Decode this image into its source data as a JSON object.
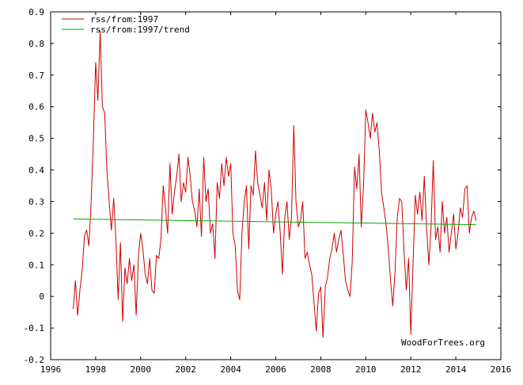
{
  "chart_data": {
    "type": "line",
    "title": "",
    "xlabel": "",
    "ylabel": "",
    "xlim": [
      1996,
      2016
    ],
    "ylim": [
      -0.2,
      0.9
    ],
    "x_ticks": [
      1996,
      1998,
      2000,
      2002,
      2004,
      2006,
      2008,
      2010,
      2012,
      2014,
      2016
    ],
    "y_ticks": [
      -0.2,
      -0.1,
      0,
      0.1,
      0.2,
      0.3,
      0.4,
      0.5,
      0.6,
      0.7,
      0.8,
      0.9
    ],
    "y_tick_labels": [
      "-0.2",
      "-0.1",
      "0",
      "0.1",
      "0.2",
      "0.3",
      "0.4",
      "0.5",
      "0.6",
      "0.7",
      "0.8",
      "0.9"
    ],
    "grid": false,
    "legend_position": "top-left",
    "watermark": "WoodForTrees.org",
    "series": [
      {
        "name": "rss/from:1997",
        "color": "#cc0000",
        "x": [
          1997.0,
          1997.1,
          1997.2,
          1997.3,
          1997.4,
          1997.5,
          1997.6,
          1997.7,
          1997.8,
          1997.9,
          1998.0,
          1998.1,
          1998.2,
          1998.3,
          1998.4,
          1998.5,
          1998.6,
          1998.7,
          1998.8,
          1998.9,
          1999.0,
          1999.1,
          1999.2,
          1999.3,
          1999.4,
          1999.5,
          1999.6,
          1999.7,
          1999.8,
          1999.9,
          2000.0,
          2000.1,
          2000.2,
          2000.3,
          2000.4,
          2000.5,
          2000.6,
          2000.7,
          2000.8,
          2000.9,
          2001.0,
          2001.1,
          2001.2,
          2001.3,
          2001.4,
          2001.5,
          2001.6,
          2001.7,
          2001.8,
          2001.9,
          2002.0,
          2002.1,
          2002.2,
          2002.3,
          2002.4,
          2002.5,
          2002.6,
          2002.7,
          2002.8,
          2002.9,
          2003.0,
          2003.1,
          2003.2,
          2003.3,
          2003.4,
          2003.5,
          2003.6,
          2003.7,
          2003.8,
          2003.9,
          2004.0,
          2004.1,
          2004.2,
          2004.3,
          2004.4,
          2004.5,
          2004.6,
          2004.7,
          2004.8,
          2004.9,
          2005.0,
          2005.1,
          2005.2,
          2005.3,
          2005.4,
          2005.5,
          2005.6,
          2005.7,
          2005.8,
          2005.9,
          2006.0,
          2006.1,
          2006.2,
          2006.3,
          2006.4,
          2006.5,
          2006.6,
          2006.7,
          2006.8,
          2006.9,
          2007.0,
          2007.1,
          2007.2,
          2007.3,
          2007.4,
          2007.5,
          2007.6,
          2007.7,
          2007.8,
          2007.9,
          2008.0,
          2008.1,
          2008.2,
          2008.3,
          2008.4,
          2008.5,
          2008.6,
          2008.7,
          2008.8,
          2008.9,
          2009.0,
          2009.1,
          2009.2,
          2009.3,
          2009.4,
          2009.5,
          2009.6,
          2009.7,
          2009.8,
          2009.9,
          2010.0,
          2010.1,
          2010.2,
          2010.3,
          2010.4,
          2010.5,
          2010.6,
          2010.7,
          2010.8,
          2010.9,
          2011.0,
          2011.1,
          2011.2,
          2011.3,
          2011.4,
          2011.5,
          2011.6,
          2011.7,
          2011.8,
          2011.9,
          2012.0,
          2012.1,
          2012.2,
          2012.3,
          2012.4,
          2012.5,
          2012.6,
          2012.7,
          2012.8,
          2012.9,
          2013.0,
          2013.1,
          2013.2,
          2013.3,
          2013.4,
          2013.5,
          2013.6,
          2013.7,
          2013.8,
          2013.9,
          2014.0,
          2014.1,
          2014.2,
          2014.3,
          2014.4,
          2014.5,
          2014.6,
          2014.7,
          2014.8,
          2014.9
        ],
        "y": [
          -0.04,
          0.05,
          -0.06,
          0.02,
          0.08,
          0.19,
          0.21,
          0.16,
          0.3,
          0.5,
          0.74,
          0.62,
          0.84,
          0.6,
          0.58,
          0.4,
          0.3,
          0.21,
          0.31,
          0.18,
          -0.01,
          0.17,
          -0.08,
          0.09,
          0.04,
          0.12,
          0.05,
          0.1,
          -0.06,
          0.13,
          0.2,
          0.15,
          0.07,
          0.04,
          0.12,
          0.02,
          0.01,
          0.13,
          0.12,
          0.18,
          0.35,
          0.28,
          0.2,
          0.42,
          0.26,
          0.33,
          0.38,
          0.45,
          0.3,
          0.36,
          0.33,
          0.44,
          0.38,
          0.3,
          0.27,
          0.22,
          0.34,
          0.19,
          0.44,
          0.3,
          0.34,
          0.2,
          0.23,
          0.12,
          0.36,
          0.31,
          0.42,
          0.35,
          0.44,
          0.38,
          0.42,
          0.2,
          0.16,
          0.02,
          -0.01,
          0.2,
          0.3,
          0.35,
          0.15,
          0.35,
          0.32,
          0.46,
          0.36,
          0.32,
          0.28,
          0.36,
          0.24,
          0.4,
          0.34,
          0.2,
          0.26,
          0.3,
          0.2,
          0.07,
          0.25,
          0.3,
          0.18,
          0.25,
          0.54,
          0.3,
          0.22,
          0.24,
          0.3,
          0.12,
          0.14,
          0.1,
          0.07,
          -0.02,
          -0.11,
          0.01,
          0.03,
          -0.13,
          0.03,
          0.06,
          0.12,
          0.15,
          0.2,
          0.14,
          0.18,
          0.21,
          0.13,
          0.05,
          0.02,
          0.0,
          0.11,
          0.41,
          0.34,
          0.45,
          0.22,
          0.35,
          0.59,
          0.55,
          0.5,
          0.58,
          0.52,
          0.55,
          0.46,
          0.33,
          0.28,
          0.23,
          0.15,
          0.05,
          -0.03,
          0.08,
          0.25,
          0.31,
          0.3,
          0.14,
          0.02,
          0.12,
          -0.12,
          0.1,
          0.32,
          0.26,
          0.33,
          0.24,
          0.38,
          0.22,
          0.1,
          0.22,
          0.43,
          0.18,
          0.22,
          0.14,
          0.3,
          0.2,
          0.25,
          0.14,
          0.2,
          0.26,
          0.15,
          0.2,
          0.28,
          0.25,
          0.34,
          0.35,
          0.2,
          0.25,
          0.27,
          0.24
        ]
      },
      {
        "name": "rss/from:1997/trend",
        "color": "#00aa00",
        "x": [
          1997.0,
          2014.9
        ],
        "y": [
          0.245,
          0.227
        ]
      }
    ]
  }
}
